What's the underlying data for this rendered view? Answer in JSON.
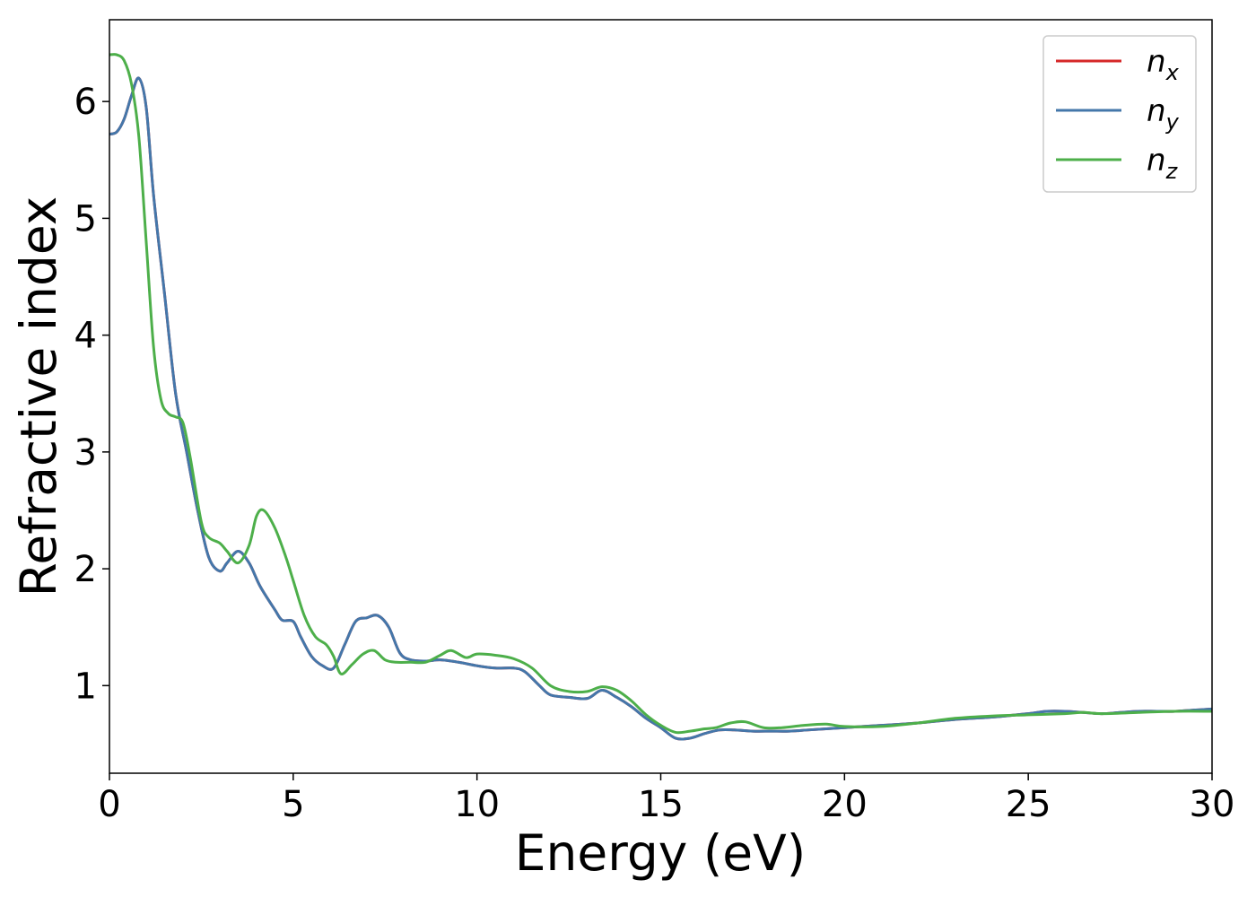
{
  "chart_data": {
    "type": "line",
    "title": "",
    "xlabel": "Energy (eV)",
    "ylabel": "Refractive index",
    "xlim": [
      0,
      30
    ],
    "ylim": [
      0.25,
      6.7
    ],
    "xticks": [
      0,
      5,
      10,
      15,
      20,
      25,
      30
    ],
    "yticks": [
      1,
      2,
      3,
      4,
      5,
      6
    ],
    "grid": false,
    "legend_position": "top-right",
    "series": [
      {
        "name": "n_x",
        "legend": {
          "base": "n",
          "sub": "x"
        },
        "color": "#d62728",
        "x": [
          0,
          0.2,
          0.4,
          0.6,
          0.8,
          1.0,
          1.2,
          1.5,
          1.8,
          2.1,
          2.4,
          2.7,
          3.0,
          3.2,
          3.5,
          3.8,
          4.1,
          4.5,
          4.7,
          5.0,
          5.2,
          5.5,
          5.8,
          6.1,
          6.4,
          6.7,
          7.0,
          7.3,
          7.6,
          7.9,
          8.2,
          8.6,
          9.0,
          9.5,
          10.0,
          10.5,
          11.0,
          11.3,
          11.7,
          12.0,
          12.5,
          13.0,
          13.4,
          13.8,
          14.2,
          14.6,
          15.0,
          15.4,
          15.8,
          16.2,
          16.6,
          17.0,
          17.5,
          18.0,
          18.5,
          19.0,
          20.0,
          21.0,
          22.0,
          23.0,
          24.0,
          25.0,
          25.5,
          26.0,
          26.5,
          27.0,
          27.5,
          28.0,
          28.5,
          29.0,
          29.5,
          30.0
        ],
        "y": [
          5.72,
          5.74,
          5.85,
          6.05,
          6.2,
          5.95,
          5.2,
          4.35,
          3.5,
          3.0,
          2.5,
          2.1,
          1.98,
          2.05,
          2.15,
          2.05,
          1.85,
          1.65,
          1.56,
          1.55,
          1.42,
          1.25,
          1.17,
          1.15,
          1.35,
          1.55,
          1.58,
          1.6,
          1.5,
          1.28,
          1.22,
          1.21,
          1.22,
          1.2,
          1.17,
          1.15,
          1.15,
          1.12,
          1.0,
          0.92,
          0.9,
          0.89,
          0.96,
          0.9,
          0.82,
          0.72,
          0.64,
          0.55,
          0.55,
          0.59,
          0.62,
          0.62,
          0.61,
          0.61,
          0.61,
          0.62,
          0.64,
          0.66,
          0.68,
          0.71,
          0.73,
          0.76,
          0.78,
          0.78,
          0.77,
          0.76,
          0.77,
          0.78,
          0.78,
          0.78,
          0.79,
          0.8
        ]
      },
      {
        "name": "n_y",
        "legend": {
          "base": "n",
          "sub": "y"
        },
        "color": "#4477aa",
        "x": [
          0,
          0.2,
          0.4,
          0.6,
          0.8,
          1.0,
          1.2,
          1.5,
          1.8,
          2.1,
          2.4,
          2.7,
          3.0,
          3.2,
          3.5,
          3.8,
          4.1,
          4.5,
          4.7,
          5.0,
          5.2,
          5.5,
          5.8,
          6.1,
          6.4,
          6.7,
          7.0,
          7.3,
          7.6,
          7.9,
          8.2,
          8.6,
          9.0,
          9.5,
          10.0,
          10.5,
          11.0,
          11.3,
          11.7,
          12.0,
          12.5,
          13.0,
          13.4,
          13.8,
          14.2,
          14.6,
          15.0,
          15.4,
          15.8,
          16.2,
          16.6,
          17.0,
          17.5,
          18.0,
          18.5,
          19.0,
          20.0,
          21.0,
          22.0,
          23.0,
          24.0,
          25.0,
          25.5,
          26.0,
          26.5,
          27.0,
          27.5,
          28.0,
          28.5,
          29.0,
          29.5,
          30.0
        ],
        "y": [
          5.72,
          5.74,
          5.85,
          6.05,
          6.2,
          5.95,
          5.2,
          4.35,
          3.5,
          3.0,
          2.5,
          2.1,
          1.98,
          2.05,
          2.15,
          2.05,
          1.85,
          1.65,
          1.56,
          1.55,
          1.42,
          1.25,
          1.17,
          1.15,
          1.35,
          1.55,
          1.58,
          1.6,
          1.5,
          1.28,
          1.22,
          1.21,
          1.22,
          1.2,
          1.17,
          1.15,
          1.15,
          1.12,
          1.0,
          0.92,
          0.9,
          0.89,
          0.96,
          0.9,
          0.82,
          0.72,
          0.64,
          0.55,
          0.55,
          0.59,
          0.62,
          0.62,
          0.61,
          0.61,
          0.61,
          0.62,
          0.64,
          0.66,
          0.68,
          0.71,
          0.73,
          0.76,
          0.78,
          0.78,
          0.77,
          0.76,
          0.77,
          0.78,
          0.78,
          0.78,
          0.79,
          0.8
        ]
      },
      {
        "name": "n_z",
        "legend": {
          "base": "n",
          "sub": "z"
        },
        "color": "#4daf4a",
        "x": [
          0,
          0.2,
          0.4,
          0.6,
          0.8,
          1.0,
          1.2,
          1.4,
          1.6,
          1.8,
          2.0,
          2.2,
          2.5,
          2.7,
          3.0,
          3.2,
          3.5,
          3.8,
          4.0,
          4.2,
          4.5,
          4.8,
          5.0,
          5.3,
          5.6,
          5.9,
          6.1,
          6.3,
          6.6,
          6.9,
          7.2,
          7.5,
          7.8,
          8.2,
          8.6,
          9.0,
          9.3,
          9.7,
          10.0,
          10.5,
          11.0,
          11.5,
          12.0,
          12.5,
          13.0,
          13.4,
          13.8,
          14.2,
          14.6,
          15.0,
          15.4,
          15.8,
          16.2,
          16.5,
          16.9,
          17.3,
          17.8,
          18.3,
          18.9,
          19.5,
          20.0,
          21.0,
          22.0,
          23.0,
          24.0,
          25.0,
          26.0,
          26.5,
          27.0,
          28.0,
          29.0,
          30.0
        ],
        "y": [
          6.4,
          6.4,
          6.35,
          6.15,
          5.7,
          4.8,
          3.9,
          3.45,
          3.33,
          3.3,
          3.25,
          2.95,
          2.4,
          2.27,
          2.22,
          2.15,
          2.05,
          2.2,
          2.45,
          2.5,
          2.35,
          2.1,
          1.9,
          1.6,
          1.42,
          1.35,
          1.25,
          1.1,
          1.18,
          1.27,
          1.3,
          1.22,
          1.2,
          1.2,
          1.2,
          1.26,
          1.3,
          1.24,
          1.27,
          1.26,
          1.23,
          1.15,
          1.0,
          0.95,
          0.95,
          0.99,
          0.96,
          0.87,
          0.75,
          0.66,
          0.6,
          0.61,
          0.63,
          0.64,
          0.68,
          0.69,
          0.64,
          0.64,
          0.66,
          0.67,
          0.65,
          0.65,
          0.68,
          0.72,
          0.74,
          0.75,
          0.76,
          0.77,
          0.76,
          0.77,
          0.78,
          0.78
        ]
      }
    ]
  }
}
